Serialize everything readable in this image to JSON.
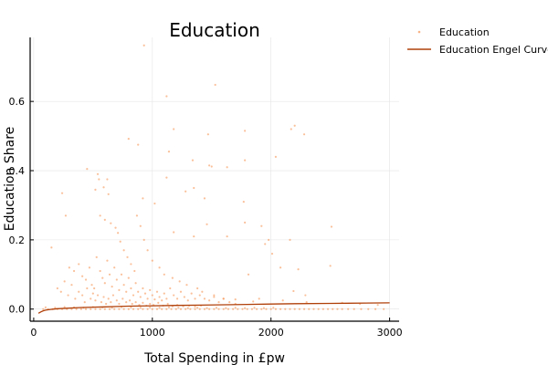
{
  "chart_data": {
    "type": "scatter",
    "title": "Education",
    "xlabel": "Total Spending in £pw",
    "ylabel": "Education Share",
    "xlim": [
      -30,
      3080
    ],
    "ylim": [
      -0.035,
      0.785
    ],
    "xticks": [
      0,
      1000,
      2000,
      3000
    ],
    "yticks": [
      0.0,
      0.2,
      0.4,
      0.6
    ],
    "grid": true,
    "legend_position": "top-right outside",
    "colors": {
      "scatter": "#f58c47",
      "curve": "#b0400a"
    },
    "series": [
      {
        "name": "Education",
        "kind": "scatter",
        "points": [
          [
            930,
            0.762
          ],
          [
            1120,
            0.615
          ],
          [
            1530,
            0.648
          ],
          [
            1180,
            0.52
          ],
          [
            2200,
            0.53
          ],
          [
            2170,
            0.52
          ],
          [
            2280,
            0.505
          ],
          [
            1470,
            0.505
          ],
          [
            1780,
            0.515
          ],
          [
            1780,
            0.43
          ],
          [
            880,
            0.475
          ],
          [
            800,
            0.492
          ],
          [
            1140,
            0.455
          ],
          [
            1500,
            0.412
          ],
          [
            1480,
            0.415
          ],
          [
            1340,
            0.43
          ],
          [
            450,
            0.405
          ],
          [
            550,
            0.375
          ],
          [
            540,
            0.39
          ],
          [
            620,
            0.375
          ],
          [
            590,
            0.352
          ],
          [
            630,
            0.332
          ],
          [
            520,
            0.345
          ],
          [
            1630,
            0.41
          ],
          [
            2040,
            0.44
          ],
          [
            1120,
            0.38
          ],
          [
            1280,
            0.34
          ],
          [
            1350,
            0.35
          ],
          [
            1440,
            0.32
          ],
          [
            1770,
            0.31
          ],
          [
            920,
            0.32
          ],
          [
            1020,
            0.305
          ],
          [
            240,
            0.335
          ],
          [
            270,
            0.27
          ],
          [
            2510,
            0.238
          ],
          [
            1780,
            0.25
          ],
          [
            1920,
            0.24
          ],
          [
            1980,
            0.2
          ],
          [
            2160,
            0.2
          ],
          [
            1950,
            0.188
          ],
          [
            2010,
            0.16
          ],
          [
            2080,
            0.12
          ],
          [
            1180,
            0.222
          ],
          [
            1350,
            0.21
          ],
          [
            1460,
            0.245
          ],
          [
            1630,
            0.21
          ],
          [
            1810,
            0.1
          ],
          [
            2230,
            0.115
          ],
          [
            2190,
            0.052
          ],
          [
            2500,
            0.125
          ],
          [
            2290,
            0.04
          ],
          [
            150,
            0.178
          ],
          [
            560,
            0.27
          ],
          [
            600,
            0.258
          ],
          [
            650,
            0.248
          ],
          [
            690,
            0.235
          ],
          [
            710,
            0.22
          ],
          [
            730,
            0.195
          ],
          [
            760,
            0.17
          ],
          [
            790,
            0.15
          ],
          [
            820,
            0.13
          ],
          [
            850,
            0.11
          ],
          [
            870,
            0.27
          ],
          [
            900,
            0.24
          ],
          [
            930,
            0.2
          ],
          [
            960,
            0.17
          ],
          [
            1000,
            0.14
          ],
          [
            1060,
            0.12
          ],
          [
            1100,
            0.1
          ],
          [
            1170,
            0.09
          ],
          [
            1230,
            0.08
          ],
          [
            1290,
            0.07
          ],
          [
            1380,
            0.06
          ],
          [
            1420,
            0.05
          ],
          [
            1520,
            0.04
          ],
          [
            1600,
            0.03
          ],
          [
            1700,
            0.028
          ],
          [
            1850,
            0.022
          ],
          [
            1900,
            0.03
          ],
          [
            2100,
            0.025
          ],
          [
            2300,
            0.02
          ],
          [
            2600,
            0.018
          ],
          [
            2750,
            0.015
          ],
          [
            2900,
            0.012
          ],
          [
            300,
            0.12
          ],
          [
            340,
            0.11
          ],
          [
            380,
            0.13
          ],
          [
            410,
            0.095
          ],
          [
            440,
            0.085
          ],
          [
            470,
            0.12
          ],
          [
            490,
            0.07
          ],
          [
            510,
            0.06
          ],
          [
            530,
            0.15
          ],
          [
            560,
            0.11
          ],
          [
            580,
            0.09
          ],
          [
            600,
            0.075
          ],
          [
            620,
            0.14
          ],
          [
            640,
            0.1
          ],
          [
            660,
            0.065
          ],
          [
            680,
            0.12
          ],
          [
            700,
            0.085
          ],
          [
            720,
            0.055
          ],
          [
            740,
            0.1
          ],
          [
            760,
            0.07
          ],
          [
            780,
            0.05
          ],
          [
            800,
            0.09
          ],
          [
            820,
            0.06
          ],
          [
            840,
            0.04
          ],
          [
            860,
            0.075
          ],
          [
            880,
            0.05
          ],
          [
            900,
            0.035
          ],
          [
            920,
            0.06
          ],
          [
            940,
            0.045
          ],
          [
            960,
            0.03
          ],
          [
            980,
            0.055
          ],
          [
            1000,
            0.04
          ],
          [
            1020,
            0.028
          ],
          [
            1040,
            0.05
          ],
          [
            1060,
            0.035
          ],
          [
            1080,
            0.025
          ],
          [
            1100,
            0.045
          ],
          [
            1120,
            0.03
          ],
          [
            1150,
            0.06
          ],
          [
            1180,
            0.04
          ],
          [
            1210,
            0.03
          ],
          [
            1240,
            0.05
          ],
          [
            1270,
            0.035
          ],
          [
            1300,
            0.025
          ],
          [
            1330,
            0.045
          ],
          [
            1360,
            0.03
          ],
          [
            1400,
            0.04
          ],
          [
            1440,
            0.03
          ],
          [
            1480,
            0.025
          ],
          [
            1520,
            0.035
          ],
          [
            1560,
            0.02
          ],
          [
            1600,
            0.03
          ],
          [
            1650,
            0.02
          ],
          [
            1700,
            0.015
          ],
          [
            200,
            0.06
          ],
          [
            230,
            0.05
          ],
          [
            260,
            0.08
          ],
          [
            290,
            0.04
          ],
          [
            320,
            0.07
          ],
          [
            350,
            0.03
          ],
          [
            380,
            0.05
          ],
          [
            410,
            0.04
          ],
          [
            430,
            0.02
          ],
          [
            450,
            0.06
          ],
          [
            480,
            0.03
          ],
          [
            500,
            0.045
          ],
          [
            520,
            0.025
          ],
          [
            540,
            0.04
          ],
          [
            570,
            0.02
          ],
          [
            590,
            0.035
          ],
          [
            610,
            0.015
          ],
          [
            630,
            0.03
          ],
          [
            650,
            0.02
          ],
          [
            670,
            0.04
          ],
          [
            700,
            0.025
          ],
          [
            720,
            0.015
          ],
          [
            750,
            0.03
          ],
          [
            780,
            0.02
          ],
          [
            810,
            0.025
          ],
          [
            830,
            0.015
          ],
          [
            860,
            0.02
          ],
          [
            890,
            0.012
          ],
          [
            920,
            0.018
          ],
          [
            950,
            0.01
          ],
          [
            980,
            0.015
          ],
          [
            1010,
            0.012
          ],
          [
            1050,
            0.018
          ],
          [
            1090,
            0.01
          ],
          [
            1130,
            0.015
          ],
          [
            1170,
            0.008
          ],
          [
            1210,
            0.012
          ],
          [
            1260,
            0.008
          ],
          [
            1310,
            0.01
          ],
          [
            1360,
            0.007
          ],
          [
            1410,
            0.01
          ],
          [
            80,
            0.0
          ],
          [
            120,
            0.0
          ],
          [
            160,
            0.0
          ],
          [
            200,
            0.0
          ],
          [
            240,
            0.0
          ],
          [
            280,
            0.0
          ],
          [
            320,
            0.0
          ],
          [
            360,
            0.0
          ],
          [
            400,
            0.0
          ],
          [
            440,
            0.0
          ],
          [
            480,
            0.0
          ],
          [
            520,
            0.0
          ],
          [
            560,
            0.0
          ],
          [
            600,
            0.0
          ],
          [
            640,
            0.0
          ],
          [
            680,
            0.0
          ],
          [
            720,
            0.0
          ],
          [
            760,
            0.0
          ],
          [
            800,
            0.0
          ],
          [
            840,
            0.0
          ],
          [
            880,
            0.0
          ],
          [
            920,
            0.0
          ],
          [
            960,
            0.0
          ],
          [
            1000,
            0.0
          ],
          [
            1040,
            0.0
          ],
          [
            1080,
            0.0
          ],
          [
            1120,
            0.0
          ],
          [
            1160,
            0.0
          ],
          [
            1200,
            0.0
          ],
          [
            1240,
            0.0
          ],
          [
            1280,
            0.0
          ],
          [
            1320,
            0.0
          ],
          [
            1360,
            0.0
          ],
          [
            1400,
            0.0
          ],
          [
            1440,
            0.0
          ],
          [
            1480,
            0.0
          ],
          [
            1520,
            0.0
          ],
          [
            1560,
            0.0
          ],
          [
            1600,
            0.0
          ],
          [
            1640,
            0.0
          ],
          [
            1680,
            0.0
          ],
          [
            1720,
            0.0
          ],
          [
            1760,
            0.0
          ],
          [
            1800,
            0.0
          ],
          [
            1840,
            0.0
          ],
          [
            1880,
            0.0
          ],
          [
            1920,
            0.0
          ],
          [
            1960,
            0.0
          ],
          [
            2000,
            0.0
          ],
          [
            2040,
            0.0
          ],
          [
            2080,
            0.0
          ],
          [
            2120,
            0.0
          ],
          [
            2160,
            0.0
          ],
          [
            2200,
            0.0
          ],
          [
            2240,
            0.0
          ],
          [
            2280,
            0.0
          ],
          [
            2320,
            0.0
          ],
          [
            2360,
            0.0
          ],
          [
            2400,
            0.0
          ],
          [
            2440,
            0.0
          ],
          [
            2480,
            0.0
          ],
          [
            2520,
            0.0
          ],
          [
            2560,
            0.0
          ],
          [
            2600,
            0.0
          ],
          [
            2650,
            0.0
          ],
          [
            2700,
            0.0
          ],
          [
            2760,
            0.0
          ],
          [
            2820,
            0.0
          ],
          [
            2880,
            0.0
          ],
          [
            2950,
            0.0
          ],
          [
            100,
            0.005
          ],
          [
            180,
            0.004
          ],
          [
            260,
            0.006
          ],
          [
            340,
            0.005
          ],
          [
            420,
            0.004
          ],
          [
            500,
            0.006
          ],
          [
            580,
            0.005
          ],
          [
            660,
            0.004
          ],
          [
            740,
            0.006
          ],
          [
            820,
            0.005
          ],
          [
            900,
            0.004
          ],
          [
            980,
            0.005
          ],
          [
            1060,
            0.004
          ],
          [
            1140,
            0.005
          ],
          [
            1220,
            0.004
          ],
          [
            1300,
            0.003
          ],
          [
            1380,
            0.004
          ],
          [
            1460,
            0.003
          ],
          [
            1540,
            0.004
          ],
          [
            1620,
            0.003
          ],
          [
            1700,
            0.004
          ],
          [
            1780,
            0.003
          ],
          [
            1860,
            0.004
          ],
          [
            1940,
            0.003
          ],
          [
            2020,
            0.004
          ]
        ]
      },
      {
        "name": "Education Engel Curve",
        "kind": "line",
        "points": [
          [
            40,
            -0.012
          ],
          [
            60,
            -0.008
          ],
          [
            80,
            -0.005
          ],
          [
            100,
            -0.003
          ],
          [
            140,
            -0.001
          ],
          [
            200,
            0.001
          ],
          [
            300,
            0.003
          ],
          [
            400,
            0.0045
          ],
          [
            500,
            0.0055
          ],
          [
            600,
            0.0065
          ],
          [
            700,
            0.0075
          ],
          [
            800,
            0.0085
          ],
          [
            1000,
            0.0095
          ],
          [
            1200,
            0.0105
          ],
          [
            1400,
            0.0115
          ],
          [
            1600,
            0.0125
          ],
          [
            1800,
            0.0135
          ],
          [
            2000,
            0.0145
          ],
          [
            2200,
            0.0155
          ],
          [
            2500,
            0.0165
          ],
          [
            2800,
            0.0175
          ],
          [
            3000,
            0.018
          ]
        ]
      }
    ]
  }
}
